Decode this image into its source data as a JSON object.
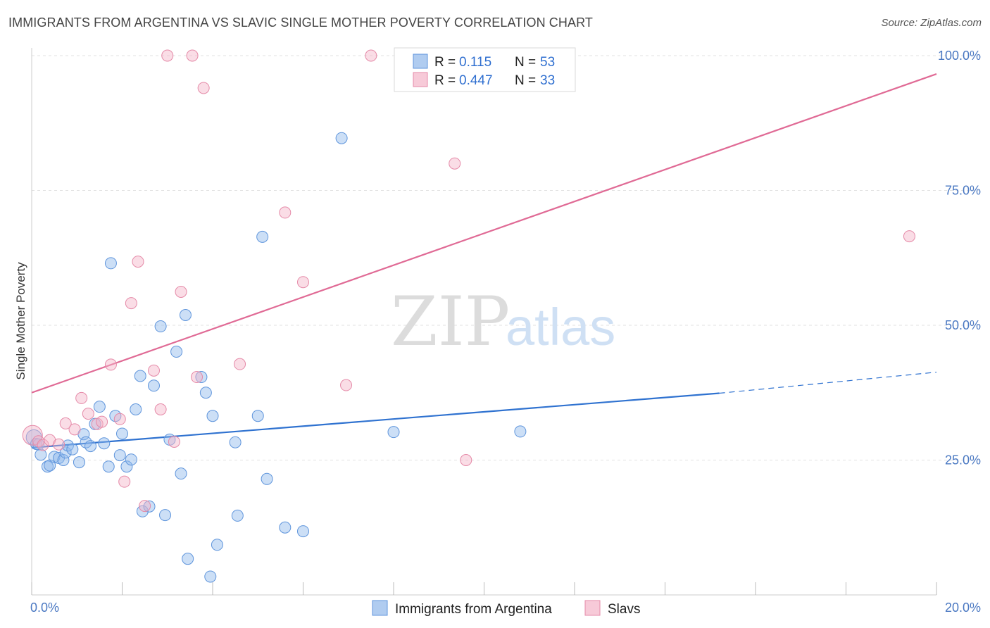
{
  "header": {
    "title": "IMMIGRANTS FROM ARGENTINA VS SLAVIC SINGLE MOTHER POVERTY CORRELATION CHART",
    "source": "Source: ZipAtlas.com"
  },
  "watermark": {
    "part1": "ZIP",
    "part2": "atlas"
  },
  "colors": {
    "blue": "#8fb7ea",
    "blue_stroke": "#5f95dc",
    "blue_line": "#2f72d0",
    "pink": "#f4b4c8",
    "pink_stroke": "#e58aa8",
    "pink_line": "#e06a95",
    "grid": "#e2e2e2",
    "axis_label": "#4a78c2"
  },
  "legend": {
    "r_label": "R =",
    "n_label": "N =",
    "rows": [
      {
        "r": "0.115",
        "n": "53"
      },
      {
        "r": "0.447",
        "n": "33"
      }
    ]
  },
  "bottom_legend": [
    {
      "label": "Immigrants from Argentina"
    },
    {
      "label": "Slavs"
    }
  ],
  "chart_data": {
    "type": "scatter",
    "title": "IMMIGRANTS FROM ARGENTINA VS SLAVIC SINGLE MOTHER POVERTY CORRELATION CHART",
    "xlabel": "",
    "ylabel": "Single Mother Poverty",
    "xlim": [
      0,
      20
    ],
    "ylim": [
      0,
      100
    ],
    "x_tick_labels": [
      "0.0%",
      "20.0%"
    ],
    "y_tick_labels": [
      "25.0%",
      "50.0%",
      "75.0%",
      "100.0%"
    ],
    "y_ticks": [
      25,
      50,
      75,
      100
    ],
    "x_ticks": [
      0,
      2,
      4,
      6,
      8,
      10,
      12,
      14,
      16,
      18,
      20
    ],
    "grid": true,
    "legend_position": "top-center",
    "series": [
      {
        "name": "Immigrants from Argentina",
        "r": 0.115,
        "n": 53,
        "trend": {
          "x": [
            0,
            15.2
          ],
          "y": [
            27.3,
            37.4
          ],
          "dashed_to": [
            20,
            41.3
          ]
        },
        "points": [
          [
            0.05,
            29.2
          ],
          [
            0.1,
            28.0
          ],
          [
            0.15,
            27.9
          ],
          [
            0.2,
            26.0
          ],
          [
            0.35,
            23.8
          ],
          [
            0.4,
            24.0
          ],
          [
            0.5,
            25.6
          ],
          [
            0.6,
            25.4
          ],
          [
            0.7,
            25.0
          ],
          [
            0.75,
            26.4
          ],
          [
            0.8,
            27.7
          ],
          [
            0.9,
            27.0
          ],
          [
            1.05,
            24.6
          ],
          [
            1.15,
            29.8
          ],
          [
            1.2,
            28.3
          ],
          [
            1.3,
            27.6
          ],
          [
            1.4,
            31.7
          ],
          [
            1.5,
            34.9
          ],
          [
            1.6,
            28.1
          ],
          [
            1.7,
            23.8
          ],
          [
            1.75,
            61.5
          ],
          [
            1.85,
            33.2
          ],
          [
            1.95,
            25.9
          ],
          [
            2.0,
            29.9
          ],
          [
            2.1,
            23.8
          ],
          [
            2.2,
            25.1
          ],
          [
            2.3,
            34.4
          ],
          [
            2.4,
            40.6
          ],
          [
            2.45,
            15.5
          ],
          [
            2.6,
            16.4
          ],
          [
            2.7,
            38.8
          ],
          [
            2.85,
            49.8
          ],
          [
            2.95,
            14.8
          ],
          [
            3.05,
            28.8
          ],
          [
            3.2,
            45.1
          ],
          [
            3.3,
            22.5
          ],
          [
            3.4,
            51.9
          ],
          [
            3.45,
            6.7
          ],
          [
            3.75,
            40.4
          ],
          [
            3.85,
            37.5
          ],
          [
            3.95,
            3.4
          ],
          [
            4.0,
            33.2
          ],
          [
            4.1,
            9.3
          ],
          [
            4.5,
            28.3
          ],
          [
            4.55,
            14.7
          ],
          [
            5.0,
            33.2
          ],
          [
            5.1,
            66.4
          ],
          [
            5.2,
            21.5
          ],
          [
            5.6,
            12.5
          ],
          [
            6.0,
            11.8
          ],
          [
            6.85,
            84.7
          ],
          [
            8.0,
            30.2
          ],
          [
            10.8,
            30.3
          ]
        ]
      },
      {
        "name": "Slavs",
        "r": 0.447,
        "n": 33,
        "trend": {
          "x": [
            0,
            20
          ],
          "y": [
            37.5,
            96.6
          ]
        },
        "points": [
          [
            0.02,
            29.6
          ],
          [
            0.15,
            28.5
          ],
          [
            0.25,
            27.8
          ],
          [
            0.4,
            28.7
          ],
          [
            0.6,
            27.9
          ],
          [
            0.75,
            31.8
          ],
          [
            0.95,
            30.7
          ],
          [
            1.1,
            36.5
          ],
          [
            1.25,
            33.6
          ],
          [
            1.45,
            31.7
          ],
          [
            1.55,
            32.1
          ],
          [
            1.75,
            42.7
          ],
          [
            1.95,
            32.6
          ],
          [
            2.05,
            21.0
          ],
          [
            2.2,
            54.1
          ],
          [
            2.35,
            61.8
          ],
          [
            2.5,
            16.5
          ],
          [
            2.7,
            41.6
          ],
          [
            2.85,
            34.4
          ],
          [
            3.0,
            100.0
          ],
          [
            3.15,
            28.4
          ],
          [
            3.3,
            56.2
          ],
          [
            3.55,
            100.0
          ],
          [
            3.65,
            40.4
          ],
          [
            3.8,
            94.0
          ],
          [
            4.6,
            42.8
          ],
          [
            5.6,
            70.9
          ],
          [
            6.0,
            58.0
          ],
          [
            6.95,
            38.9
          ],
          [
            7.5,
            100.0
          ],
          [
            9.35,
            80.0
          ],
          [
            9.6,
            25.0
          ],
          [
            19.4,
            66.5
          ]
        ]
      }
    ]
  }
}
